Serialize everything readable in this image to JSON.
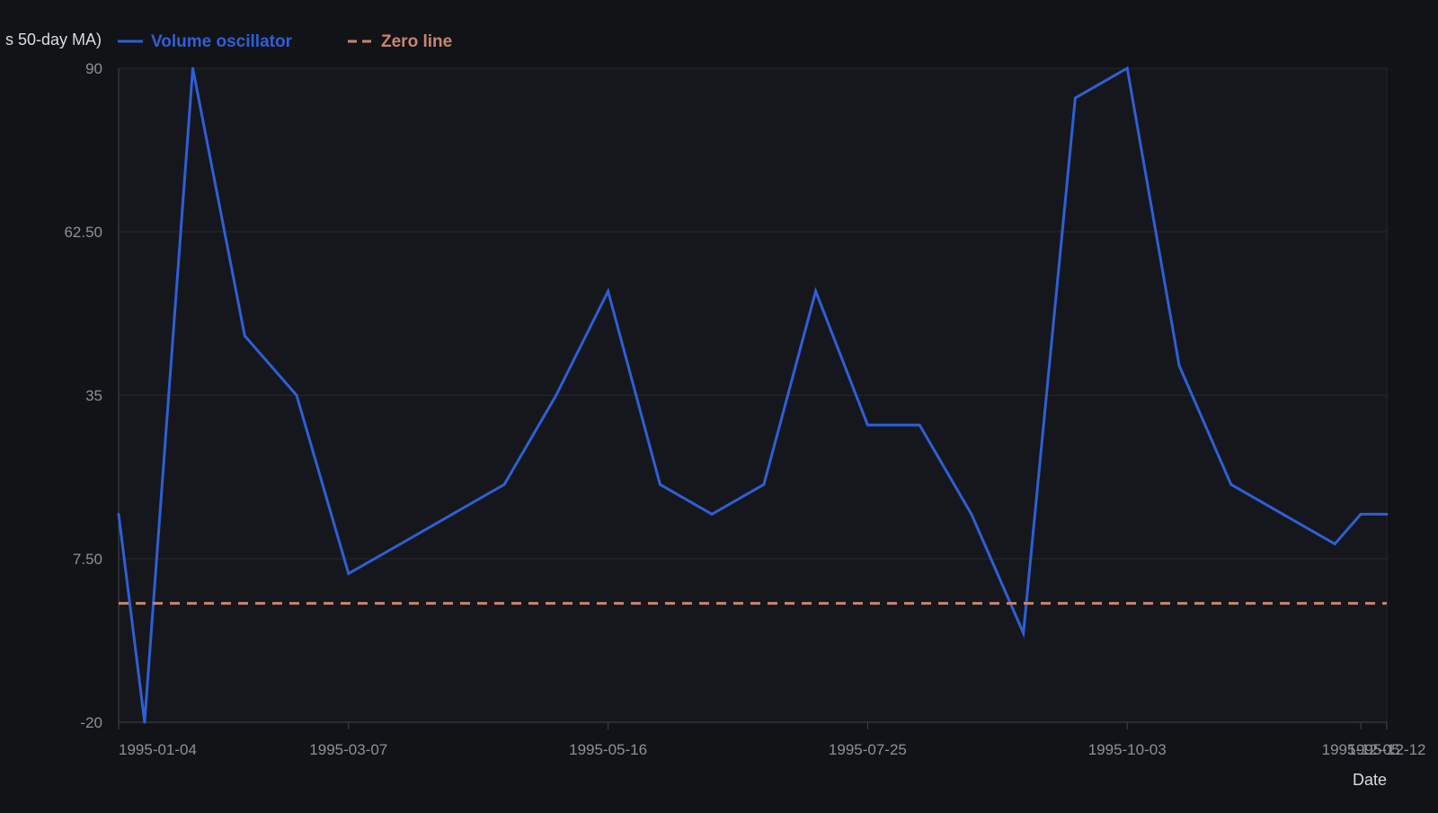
{
  "colors": {
    "background": "#121317",
    "plot_background": "#15171c",
    "grid": "#262a31",
    "axis": "#40444b",
    "tick_text": "#8c9097",
    "label_text": "#d9dce1",
    "oscillator": "#2f5fd6",
    "zero_line": "#c98471"
  },
  "chart_data": {
    "type": "line",
    "title": "",
    "ylabel_fragment": "s 50-day MA)",
    "xlabel": "Date",
    "ylim": [
      -20,
      90
    ],
    "yticks": [
      -20,
      7.5,
      35,
      62.5,
      90
    ],
    "ytick_labels": [
      "-20",
      "7.50",
      "35",
      "62.50",
      "90"
    ],
    "xlim": [
      "1995-01-04",
      "1995-12-12"
    ],
    "xticks": [
      "1995-01-04",
      "1995-03-07",
      "1995-05-16",
      "1995-07-25",
      "1995-10-03",
      "1995-12-05",
      "1995-12-12"
    ],
    "legend_position": "top-left",
    "grid": true,
    "series": [
      {
        "name": "Volume oscillator",
        "style": "solid",
        "x": [
          "1995-01-04",
          "1995-01-11",
          "1995-01-24",
          "1995-02-07",
          "1995-02-21",
          "1995-03-07",
          "1995-03-21",
          "1995-04-04",
          "1995-04-18",
          "1995-05-02",
          "1995-05-16",
          "1995-05-30",
          "1995-06-13",
          "1995-06-27",
          "1995-07-11",
          "1995-07-25",
          "1995-08-08",
          "1995-08-22",
          "1995-09-05",
          "1995-09-19",
          "1995-10-03",
          "1995-10-17",
          "1995-10-31",
          "1995-11-14",
          "1995-11-28",
          "1995-12-05",
          "1995-12-12"
        ],
        "values": [
          15,
          -20,
          90,
          45,
          35,
          5,
          10,
          15,
          20,
          35,
          52.5,
          20,
          15,
          20,
          52.5,
          30,
          30,
          15,
          -5,
          85,
          90,
          40,
          20,
          15,
          10,
          15,
          15
        ]
      },
      {
        "name": "Zero line",
        "style": "dashed",
        "x": [
          "1995-01-04",
          "1995-12-12"
        ],
        "values": [
          0,
          0
        ]
      }
    ]
  }
}
